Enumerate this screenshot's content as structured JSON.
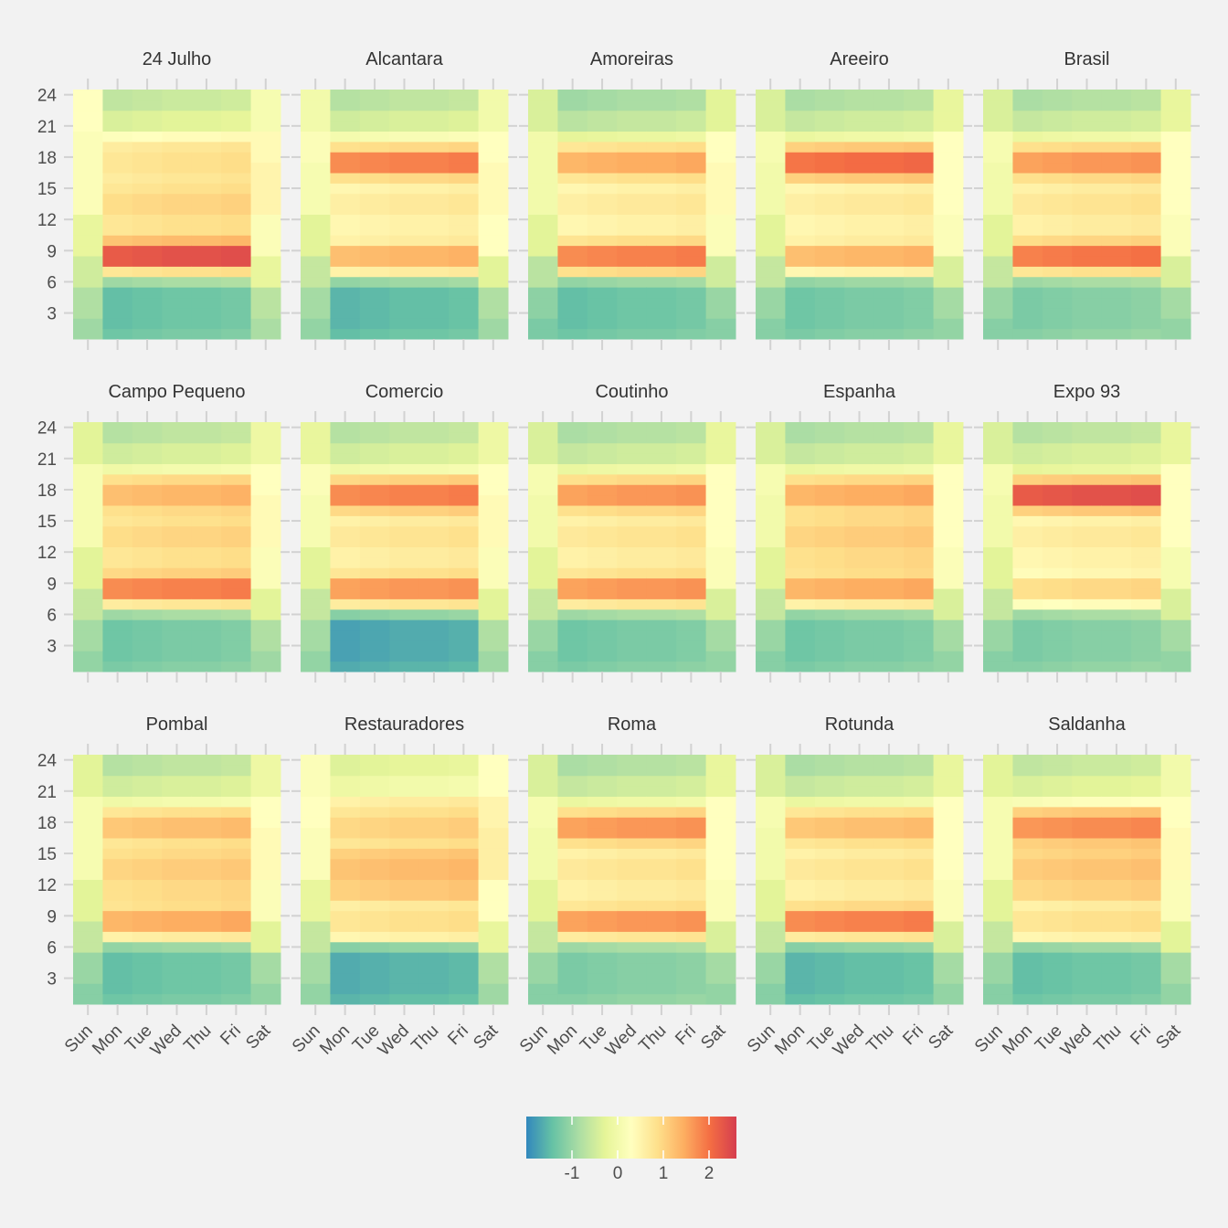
{
  "chart_data": {
    "type": "heatmap",
    "x_categories": [
      "Sun",
      "Mon",
      "Tue",
      "Wed",
      "Thu",
      "Fri",
      "Sat"
    ],
    "y_ticks": [
      3,
      6,
      9,
      12,
      15,
      18,
      21,
      24
    ],
    "hours": [
      1,
      24
    ],
    "legend": {
      "ticks": [
        -1,
        0,
        1,
        2
      ],
      "range": [
        -2.0,
        2.6
      ],
      "palette": "Spectral"
    },
    "panels": [
      {
        "name": "24 Julho",
        "profile": {
          "night": -1.4,
          "am": 2.3,
          "amEdge": 0.8,
          "mid": 0.8,
          "pm": 0.8,
          "pmEdge": 0.7,
          "eve": 0.3,
          "late": -0.5,
          "first": -0.9,
          "sat": [
            -0.7,
            -0.2,
            0.2,
            0.5,
            0.4,
            0.1
          ],
          "sun": [
            -0.8,
            -0.5,
            -0.2,
            0.2,
            0.2,
            0.3
          ]
        }
      },
      {
        "name": "Alcantara",
        "profile": {
          "night": -1.5,
          "am": 1.3,
          "amEdge": 0.6,
          "mid": 0.5,
          "pm": 1.8,
          "pmEdge": 0.9,
          "eve": 0.1,
          "late": -0.6,
          "first": -1.0,
          "sat": [
            -0.8,
            -0.3,
            0.3,
            0.4,
            0.3,
            0.0
          ],
          "sun": [
            -0.9,
            -0.6,
            -0.3,
            0.1,
            0.2,
            0.0
          ]
        }
      },
      {
        "name": "Amoreiras",
        "profile": {
          "night": -1.4,
          "am": 1.8,
          "amEdge": 0.9,
          "mid": 0.5,
          "pm": 1.4,
          "pmEdge": 0.8,
          "eve": -0.2,
          "late": -0.8,
          "first": -1.0,
          "sat": [
            -1.0,
            -0.5,
            0.2,
            0.4,
            0.3,
            -0.3
          ],
          "sun": [
            -1.1,
            -0.7,
            -0.3,
            0.0,
            0.0,
            -0.4
          ]
        }
      },
      {
        "name": "Areeiro",
        "profile": {
          "night": -1.3,
          "am": 1.3,
          "amEdge": 0.5,
          "mid": 0.5,
          "pm": 2.0,
          "pmEdge": 1.1,
          "eve": -0.1,
          "late": -0.7,
          "first": -1.0,
          "sat": [
            -0.9,
            -0.4,
            0.2,
            0.3,
            0.3,
            -0.2
          ],
          "sun": [
            -1.0,
            -0.6,
            -0.3,
            0.0,
            0.1,
            -0.4
          ]
        }
      },
      {
        "name": "Brasil",
        "profile": {
          "night": -1.2,
          "am": 1.9,
          "amEdge": 0.8,
          "mid": 0.6,
          "pm": 1.6,
          "pmEdge": 0.9,
          "eve": -0.1,
          "late": -0.7,
          "first": -0.9,
          "sat": [
            -0.9,
            -0.4,
            0.2,
            0.3,
            0.3,
            -0.2
          ],
          "sun": [
            -1.0,
            -0.6,
            -0.3,
            0.0,
            0.1,
            -0.4
          ]
        }
      },
      {
        "name": "Campo Pequeno",
        "profile": {
          "night": -1.3,
          "am": 1.8,
          "amEdge": 0.7,
          "mid": 0.8,
          "pm": 1.3,
          "pmEdge": 0.9,
          "eve": 0.0,
          "late": -0.6,
          "first": -0.9,
          "sat": [
            -0.8,
            -0.3,
            0.2,
            0.4,
            0.3,
            -0.1
          ],
          "sun": [
            -0.9,
            -0.6,
            -0.3,
            0.1,
            0.1,
            -0.3
          ]
        }
      },
      {
        "name": "Comercio",
        "profile": {
          "night": -1.7,
          "am": 1.6,
          "amEdge": 0.7,
          "mid": 0.6,
          "pm": 1.8,
          "pmEdge": 1.0,
          "eve": 0.0,
          "late": -0.6,
          "first": -1.1,
          "sat": [
            -0.8,
            -0.3,
            0.2,
            0.4,
            0.3,
            -0.1
          ],
          "sun": [
            -0.9,
            -0.6,
            -0.3,
            0.1,
            0.2,
            -0.2
          ]
        }
      },
      {
        "name": "Coutinho",
        "profile": {
          "night": -1.3,
          "am": 1.6,
          "amEdge": 0.7,
          "mid": 0.6,
          "pm": 1.6,
          "pmEdge": 0.9,
          "eve": -0.1,
          "late": -0.7,
          "first": -0.9,
          "sat": [
            -0.9,
            -0.4,
            0.2,
            0.3,
            0.3,
            -0.2
          ],
          "sun": [
            -1.0,
            -0.6,
            -0.3,
            0.0,
            0.1,
            -0.4
          ]
        }
      },
      {
        "name": "Espanha",
        "profile": {
          "night": -1.3,
          "am": 1.4,
          "amEdge": 0.6,
          "mid": 0.9,
          "pm": 1.4,
          "pmEdge": 0.9,
          "eve": -0.1,
          "late": -0.7,
          "first": -1.0,
          "sat": [
            -0.9,
            -0.4,
            0.2,
            0.3,
            0.3,
            -0.2
          ],
          "sun": [
            -1.0,
            -0.6,
            -0.3,
            0.0,
            0.1,
            -0.4
          ]
        }
      },
      {
        "name": "Expo 93",
        "profile": {
          "night": -1.2,
          "am": 0.9,
          "amEdge": 0.3,
          "mid": 0.5,
          "pm": 2.3,
          "pmEdge": 1.1,
          "eve": -0.2,
          "late": -0.6,
          "first": -0.9,
          "sat": [
            -0.9,
            -0.4,
            0.1,
            0.3,
            0.3,
            -0.2
          ],
          "sun": [
            -1.0,
            -0.6,
            -0.3,
            0.0,
            0.1,
            -0.4
          ]
        }
      },
      {
        "name": "Pombal",
        "profile": {
          "night": -1.4,
          "am": 1.4,
          "amEdge": 0.6,
          "mid": 0.9,
          "pm": 1.2,
          "pmEdge": 0.8,
          "eve": 0.0,
          "late": -0.6,
          "first": -1.0,
          "sat": [
            -0.9,
            -0.3,
            0.2,
            0.4,
            0.3,
            -0.1
          ],
          "sun": [
            -1.0,
            -0.6,
            -0.3,
            0.1,
            0.1,
            -0.3
          ]
        }
      },
      {
        "name": "Restauradores",
        "profile": {
          "night": -1.6,
          "am": 0.8,
          "amEdge": 0.5,
          "mid": 1.1,
          "pm": 1.0,
          "pmEdge": 0.8,
          "eve": 0.6,
          "late": -0.2,
          "first": -1.1,
          "sat": [
            -0.8,
            -0.2,
            0.3,
            0.6,
            0.5,
            0.3
          ],
          "sun": [
            -0.9,
            -0.6,
            -0.2,
            0.2,
            0.3,
            0.2
          ]
        }
      },
      {
        "name": "Roma",
        "profile": {
          "night": -1.2,
          "am": 1.6,
          "amEdge": 0.7,
          "mid": 0.6,
          "pm": 1.6,
          "pmEdge": 0.9,
          "eve": -0.1,
          "late": -0.7,
          "first": -0.9,
          "sat": [
            -0.9,
            -0.4,
            0.2,
            0.3,
            0.3,
            -0.2
          ],
          "sun": [
            -1.0,
            -0.6,
            -0.3,
            0.0,
            0.1,
            -0.4
          ]
        }
      },
      {
        "name": "Rotunda",
        "profile": {
          "night": -1.5,
          "am": 1.8,
          "amEdge": 0.7,
          "mid": 0.6,
          "pm": 1.2,
          "pmEdge": 0.8,
          "eve": -0.1,
          "late": -0.7,
          "first": -1.1,
          "sat": [
            -0.9,
            -0.4,
            0.2,
            0.3,
            0.3,
            -0.2
          ],
          "sun": [
            -1.0,
            -0.6,
            -0.3,
            0.0,
            0.1,
            -0.4
          ]
        }
      },
      {
        "name": "Saldanha",
        "profile": {
          "night": -1.4,
          "am": 0.8,
          "amEdge": 0.5,
          "mid": 1.0,
          "pm": 1.7,
          "pmEdge": 1.1,
          "eve": 0.2,
          "late": -0.5,
          "first": -1.0,
          "sat": [
            -0.9,
            -0.3,
            0.2,
            0.4,
            0.3,
            0.0
          ],
          "sun": [
            -1.0,
            -0.6,
            -0.3,
            0.1,
            0.1,
            -0.3
          ]
        }
      }
    ]
  }
}
